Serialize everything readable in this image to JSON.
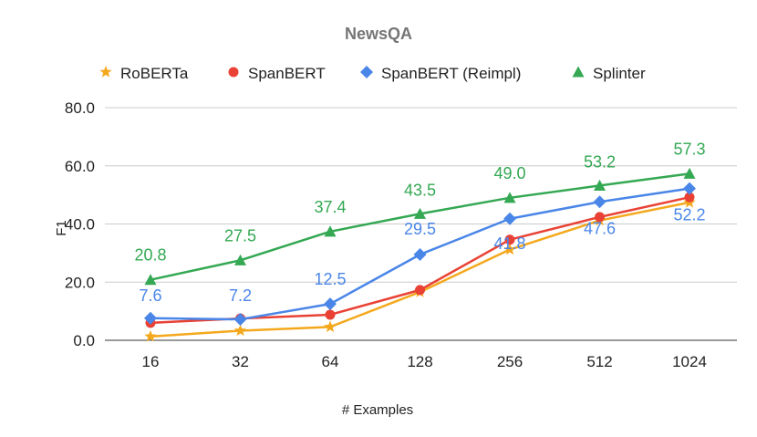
{
  "chart_data": {
    "type": "line",
    "title": "NewsQA",
    "xlabel": "# Examples",
    "ylabel": "F1",
    "categories": [
      "16",
      "32",
      "64",
      "128",
      "256",
      "512",
      "1024"
    ],
    "ylim": [
      0,
      80
    ],
    "yticks": [
      "0.0",
      "20.0",
      "40.0",
      "60.0",
      "80.0"
    ],
    "grid": "horizontal",
    "legend_position": "top",
    "series": [
      {
        "name": "RoBERTa",
        "marker": "star",
        "color": "#f4a81d",
        "values": [
          1.3,
          3.3,
          4.6,
          16.6,
          31.2,
          41.2,
          47.4
        ]
      },
      {
        "name": "SpanBERT",
        "marker": "circle",
        "color": "#e94235",
        "values": [
          6.0,
          7.5,
          8.8,
          17.3,
          34.6,
          42.4,
          49.2
        ]
      },
      {
        "name": "SpanBERT (Reimpl)",
        "marker": "diamond",
        "color": "#4a86e8",
        "values": [
          7.6,
          7.2,
          12.5,
          29.5,
          41.8,
          47.6,
          52.2
        ],
        "labels": [
          "7.6",
          "7.2",
          "12.5",
          "29.5",
          "41.8",
          "47.6",
          "52.2"
        ]
      },
      {
        "name": "Splinter",
        "marker": "triangle",
        "color": "#34a853",
        "values": [
          20.8,
          27.5,
          37.4,
          43.5,
          49.0,
          53.2,
          57.3
        ],
        "labels": [
          "20.8",
          "27.5",
          "37.4",
          "43.5",
          "49.0",
          "53.2",
          "57.3"
        ]
      }
    ]
  }
}
